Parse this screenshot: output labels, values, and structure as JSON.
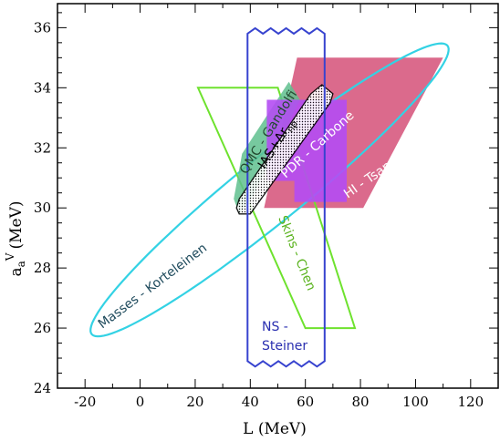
{
  "chart_data": {
    "type": "area",
    "xlabel": "L (MeV)",
    "ylabel": "a_a^V (MeV)",
    "ylabel_main": "a",
    "ylabel_sub": "a",
    "ylabel_sup": "V",
    "ylabel_unit": "(MeV)",
    "xlim": [
      -30,
      130
    ],
    "ylim": [
      24,
      36.8
    ],
    "x_ticks": [
      -20,
      0,
      20,
      40,
      60,
      80,
      100,
      120
    ],
    "y_ticks": [
      24,
      26,
      28,
      30,
      32,
      34,
      36
    ],
    "grid": false,
    "regions": [
      {
        "name": "HI - Tsang",
        "shape": "polygon",
        "color": "#d2456f",
        "points": [
          [
            57,
            35
          ],
          [
            110,
            35
          ],
          [
            81,
            30
          ],
          [
            45,
            30
          ]
        ]
      },
      {
        "name": "Masses - Korteleinen",
        "shape": "ellipse",
        "color": "#33d2e4",
        "center": [
          47,
          30.6
        ],
        "semi_axis_major": [
          65,
          4.7
        ],
        "semi_axis_minor": [
          -1.35,
          1.3
        ]
      },
      {
        "name": "Skins - Chen",
        "shape": "polygon",
        "color": "#6ee22e",
        "points": [
          [
            21,
            34
          ],
          [
            50,
            34
          ],
          [
            78,
            26
          ],
          [
            60,
            26
          ]
        ]
      },
      {
        "name": "QMC - Gandolfi",
        "shape": "polygon",
        "color": "#5fc08e",
        "points": [
          [
            34,
            30.3
          ],
          [
            37,
            31.8
          ],
          [
            54,
            34.2
          ],
          [
            58,
            33.6
          ],
          [
            41,
            30.4
          ],
          [
            36,
            29.8
          ]
        ]
      },
      {
        "name": "PDR - Carbone",
        "shape": "polygon",
        "color": "#b44cf3",
        "points": [
          [
            46,
            30.9
          ],
          [
            56,
            30.9
          ],
          [
            56,
            30.2
          ],
          [
            75,
            30.2
          ],
          [
            75,
            33.6
          ],
          [
            46,
            33.6
          ]
        ]
      },
      {
        "name": "IAS+Δr_np",
        "label_main": "IAS+Δr",
        "label_sub": "np",
        "shape": "polygon",
        "color": "#000000",
        "points": [
          [
            36,
            30.3
          ],
          [
            62,
            33.8
          ],
          [
            66,
            34.1
          ],
          [
            70,
            33.8
          ],
          [
            69,
            33.5
          ],
          [
            40,
            29.8
          ],
          [
            36,
            29.8
          ],
          [
            35,
            30.0
          ]
        ]
      },
      {
        "name": "NS - Steiner",
        "label_line1": "NS -",
        "label_line2": "Steiner",
        "shape": "wavy-rectangle",
        "color": "#3743cf",
        "x_range": [
          39,
          67
        ],
        "y_range": [
          24.9,
          35.8
        ]
      }
    ]
  }
}
